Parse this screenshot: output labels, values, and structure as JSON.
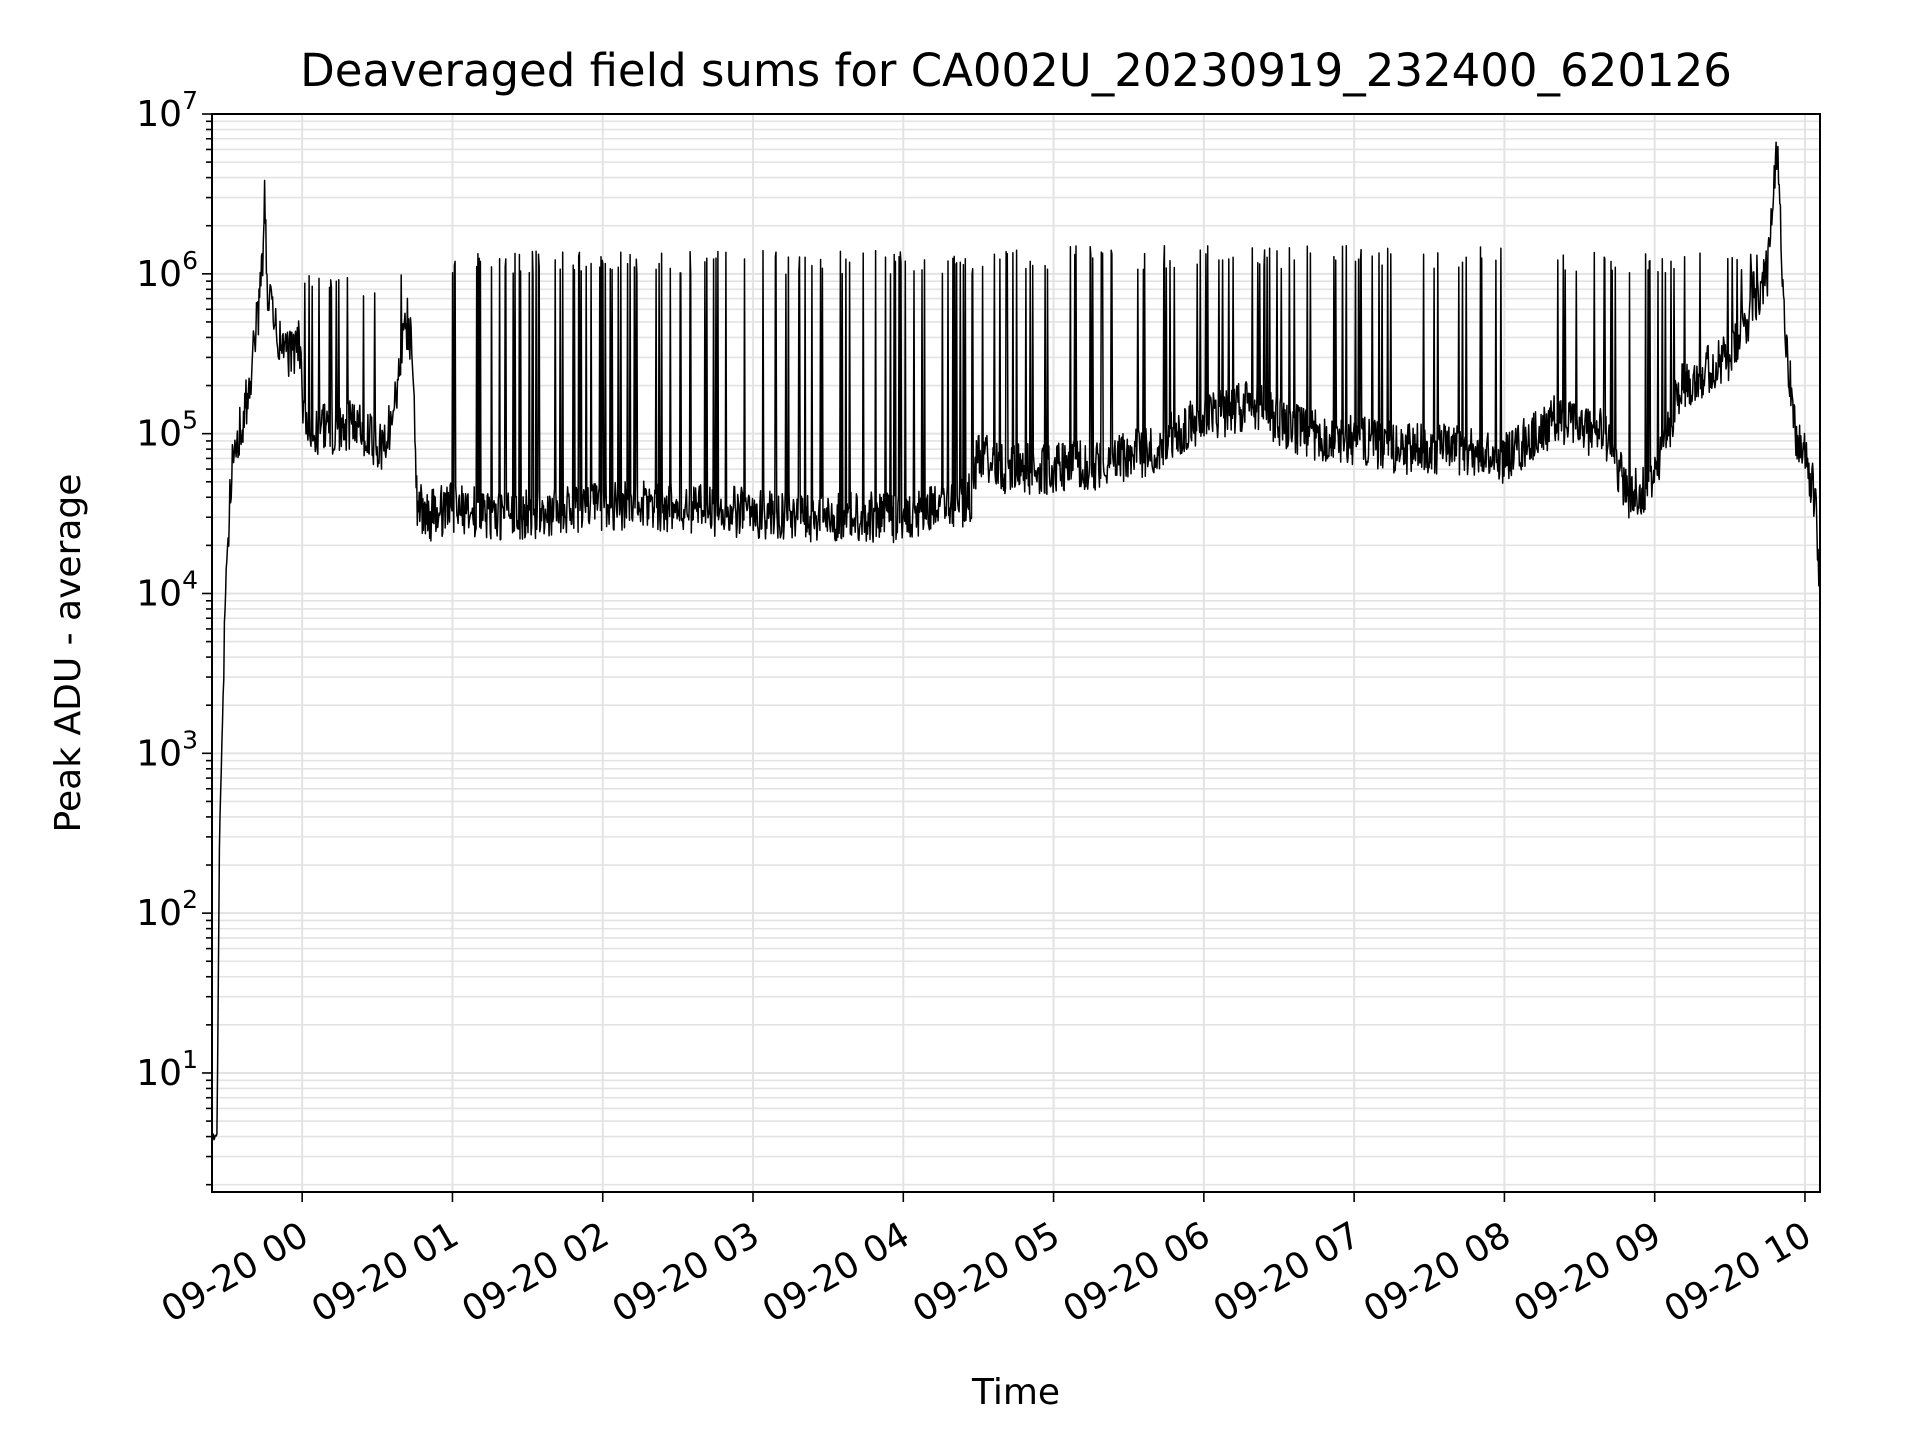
{
  "chart_data": {
    "type": "line",
    "title": "Deaveraged field sums for CA002U_20230919_232400_620126",
    "xlabel": "Time",
    "ylabel": "Peak ADU - average",
    "x_scale": "time",
    "y_scale": "log",
    "xlim": [
      "2023-09-19 23:24",
      "2023-09-20 10:06"
    ],
    "ylim": [
      1.8,
      10000000
    ],
    "grid": true,
    "line_color": "#000000",
    "grid_color": "#e3e3e3",
    "x_ticks": [
      {
        "t": "2023-09-20 00:00",
        "label": "09-20 00"
      },
      {
        "t": "2023-09-20 01:00",
        "label": "09-20 01"
      },
      {
        "t": "2023-09-20 02:00",
        "label": "09-20 02"
      },
      {
        "t": "2023-09-20 03:00",
        "label": "09-20 03"
      },
      {
        "t": "2023-09-20 04:00",
        "label": "09-20 04"
      },
      {
        "t": "2023-09-20 05:00",
        "label": "09-20 05"
      },
      {
        "t": "2023-09-20 06:00",
        "label": "09-20 06"
      },
      {
        "t": "2023-09-20 07:00",
        "label": "09-20 07"
      },
      {
        "t": "2023-09-20 08:00",
        "label": "09-20 08"
      },
      {
        "t": "2023-09-20 09:00",
        "label": "09-20 09"
      },
      {
        "t": "2023-09-20 10:00",
        "label": "09-20 10"
      }
    ],
    "y_ticks": [
      {
        "value": 10,
        "base": "10",
        "exp": "1"
      },
      {
        "value": 100,
        "base": "10",
        "exp": "2"
      },
      {
        "value": 1000,
        "base": "10",
        "exp": "3"
      },
      {
        "value": 10000,
        "base": "10",
        "exp": "4"
      },
      {
        "value": 100000,
        "base": "10",
        "exp": "5"
      },
      {
        "value": 1000000,
        "base": "10",
        "exp": "6"
      },
      {
        "value": 10000000,
        "base": "10",
        "exp": "7"
      }
    ],
    "series": [
      {
        "points": [
          [
            "2023-09-19 23:24",
            4
          ],
          [
            "2023-09-19 23:26",
            4
          ],
          [
            "2023-09-19 23:27",
            300
          ],
          [
            "2023-09-19 23:29",
            5000
          ],
          [
            "2023-09-19 23:31",
            40000
          ],
          [
            "2023-09-19 23:33",
            90000
          ],
          [
            "2023-09-19 23:36",
            110000
          ],
          [
            "2023-09-19 23:39",
            200000
          ],
          [
            "2023-09-19 23:42",
            500000
          ],
          [
            "2023-09-19 23:44",
            1000000
          ],
          [
            "2023-09-19 23:45",
            2900000
          ],
          [
            "2023-09-19 23:46",
            800000
          ],
          [
            "2023-09-19 23:48",
            600000
          ],
          [
            "2023-09-19 23:50",
            380000
          ],
          [
            "2023-09-19 23:53",
            350000
          ],
          [
            "2023-09-19 23:56",
            300000
          ],
          [
            "2023-09-19 23:59",
            380000
          ],
          [
            "2023-09-20 00:01",
            100000
          ],
          [
            "2023-09-20 00:03",
            90000
          ],
          [
            "2023-09-20 00:08",
            110000
          ],
          [
            "2023-09-20 00:15",
            100000
          ],
          [
            "2023-09-20 00:22",
            120000
          ],
          [
            "2023-09-20 00:28",
            90000
          ],
          [
            "2023-09-20 00:33",
            80000
          ],
          [
            "2023-09-20 00:38",
            200000
          ],
          [
            "2023-09-20 00:42",
            500000
          ],
          [
            "2023-09-20 00:44",
            350000
          ],
          [
            "2023-09-20 00:46",
            35000
          ],
          [
            "2023-09-20 00:50",
            30000
          ],
          [
            "2023-09-20 01:00",
            35000
          ],
          [
            "2023-09-20 01:20",
            30000
          ],
          [
            "2023-09-20 01:40",
            32000
          ],
          [
            "2023-09-20 02:00",
            35000
          ],
          [
            "2023-09-20 02:20",
            36000
          ],
          [
            "2023-09-20 02:40",
            33000
          ],
          [
            "2023-09-20 03:00",
            32000
          ],
          [
            "2023-09-20 03:20",
            30000
          ],
          [
            "2023-09-20 03:40",
            30000
          ],
          [
            "2023-09-20 04:00",
            30000
          ],
          [
            "2023-09-20 04:20",
            35000
          ],
          [
            "2023-09-20 04:27",
            40000
          ],
          [
            "2023-09-20 04:30",
            80000
          ],
          [
            "2023-09-20 04:40",
            60000
          ],
          [
            "2023-09-20 05:00",
            60000
          ],
          [
            "2023-09-20 05:20",
            65000
          ],
          [
            "2023-09-20 05:40",
            80000
          ],
          [
            "2023-09-20 06:00",
            130000
          ],
          [
            "2023-09-20 06:20",
            150000
          ],
          [
            "2023-09-20 06:40",
            100000
          ],
          [
            "2023-09-20 07:00",
            90000
          ],
          [
            "2023-09-20 07:20",
            80000
          ],
          [
            "2023-09-20 07:40",
            80000
          ],
          [
            "2023-09-20 08:00",
            70000
          ],
          [
            "2023-09-20 08:20",
            120000
          ],
          [
            "2023-09-20 08:40",
            100000
          ],
          [
            "2023-09-20 08:50",
            40000
          ],
          [
            "2023-09-20 09:00",
            50000
          ],
          [
            "2023-09-20 09:10",
            200000
          ],
          [
            "2023-09-20 09:30",
            300000
          ],
          [
            "2023-09-20 09:45",
            1000000
          ],
          [
            "2023-09-20 09:49",
            6000000
          ],
          [
            "2023-09-20 09:52",
            500000
          ],
          [
            "2023-09-20 09:56",
            100000
          ],
          [
            "2023-09-20 10:00",
            70000
          ],
          [
            "2023-09-20 10:04",
            40000
          ],
          [
            "2023-09-20 10:06",
            10000
          ]
        ],
        "spikes": [
          {
            "from": "2023-09-20 00:00",
            "to": "2023-09-20 00:40",
            "count": 14,
            "peak": 1000000
          },
          {
            "from": "2023-09-20 01:00",
            "to": "2023-09-20 04:28",
            "count": 110,
            "peak": 1400000
          },
          {
            "from": "2023-09-20 04:28",
            "to": "2023-09-20 08:00",
            "count": 80,
            "peak": 1500000
          },
          {
            "from": "2023-09-20 08:15",
            "to": "2023-09-20 09:45",
            "count": 34,
            "peak": 1400000
          }
        ]
      }
    ]
  }
}
